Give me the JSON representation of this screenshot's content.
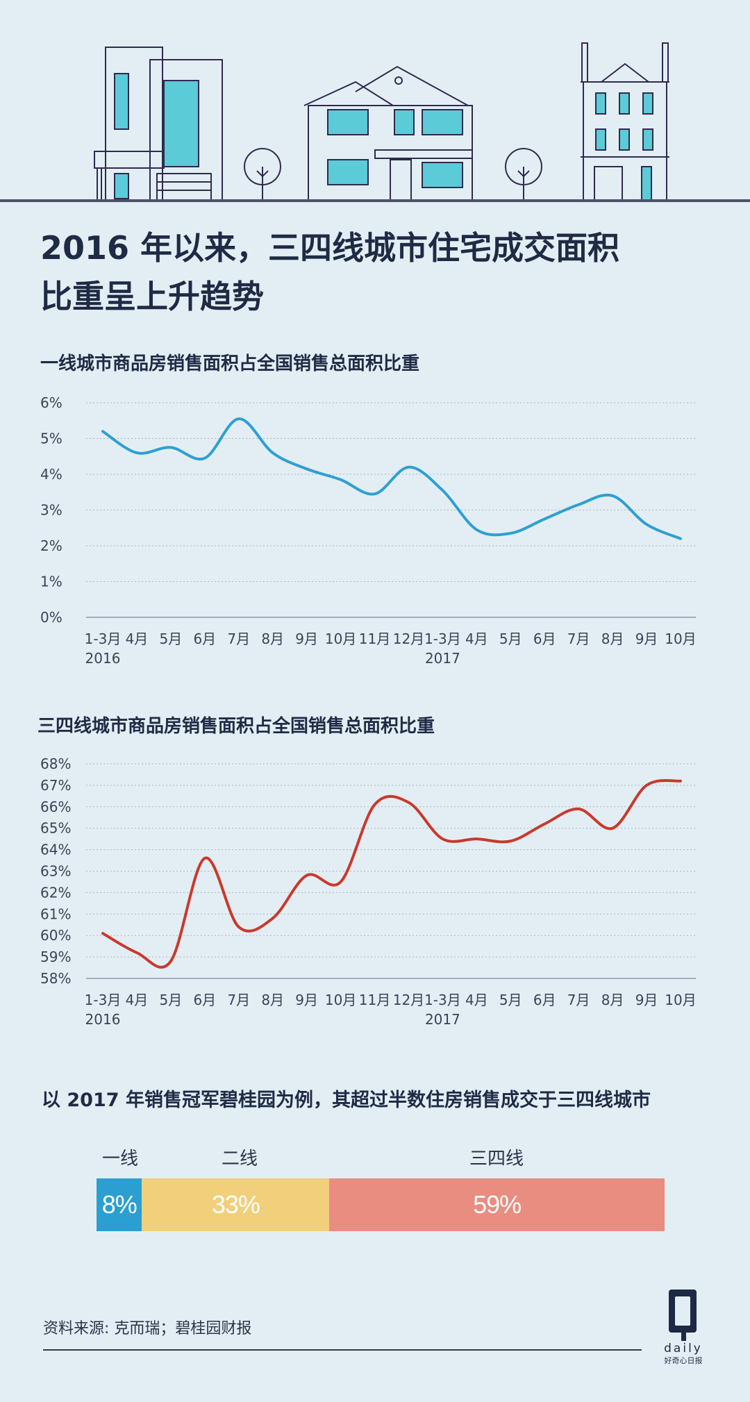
{
  "title_line1": "2016 年以来，三四线城市住宅成交面积",
  "title_line2": "比重呈上升趋势",
  "colors": {
    "background": "#e3eef4",
    "line1": "#2f9fd2",
    "line2": "#c9392c",
    "tier1": "#2b9fd1",
    "tier2": "#f2cf7b",
    "tier34": "#e88d80",
    "house_line": "#2f2a4e",
    "window": "#5ccbd8"
  },
  "chart_data": [
    {
      "type": "line",
      "title": "一线城市商品房销售面积占全国销售总面积比重",
      "x_labels": [
        "1-3月",
        "4月",
        "5月",
        "6月",
        "7月",
        "8月",
        "9月",
        "10月",
        "11月",
        "12月",
        "1-3月",
        "4月",
        "5月",
        "6月",
        "7月",
        "8月",
        "9月",
        "10月"
      ],
      "year_labels": [
        {
          "index": 0,
          "label": "2016"
        },
        {
          "index": 10,
          "label": "2017"
        }
      ],
      "y_ticks": [
        "0%",
        "1%",
        "2%",
        "3%",
        "4%",
        "5%",
        "6%"
      ],
      "ylim": [
        0,
        6
      ],
      "series": [
        {
          "values": [
            5.2,
            4.6,
            4.75,
            4.45,
            5.55,
            4.6,
            4.15,
            3.85,
            3.45,
            4.2,
            3.55,
            2.45,
            2.35,
            2.75,
            3.15,
            3.4,
            2.6,
            2.2
          ]
        }
      ]
    },
    {
      "type": "line",
      "title": "三四线城市商品房销售面积占全国销售总面积比重",
      "x_labels": [
        "1-3月",
        "4月",
        "5月",
        "6月",
        "7月",
        "8月",
        "9月",
        "10月",
        "11月",
        "12月",
        "1-3月",
        "4月",
        "5月",
        "6月",
        "7月",
        "8月",
        "9月",
        "10月"
      ],
      "year_labels": [
        {
          "index": 0,
          "label": "2016"
        },
        {
          "index": 10,
          "label": "2017"
        }
      ],
      "y_ticks": [
        "58%",
        "59%",
        "60%",
        "61%",
        "62%",
        "63%",
        "64%",
        "65%",
        "66%",
        "67%",
        "68%"
      ],
      "ylim": [
        58,
        68
      ],
      "series": [
        {
          "values": [
            60.1,
            59.2,
            58.8,
            63.6,
            60.4,
            60.8,
            62.8,
            62.5,
            66.1,
            66.2,
            64.5,
            64.5,
            64.4,
            65.2,
            65.9,
            65.0,
            67.0,
            67.2
          ]
        }
      ]
    },
    {
      "type": "bar",
      "title": "以 2017 年销售冠军碧桂园为例，其超过半数住房销售成交于三四线城市",
      "stacked": true,
      "categories": [
        "一线",
        "二线",
        "三四线"
      ],
      "values": [
        8,
        33,
        59
      ],
      "value_labels": [
        "8%",
        "33%",
        "59%"
      ]
    }
  ],
  "source": "资料来源: 克而瑞；碧桂园财报",
  "logo": {
    "letter": "Q",
    "word": "daily",
    "tagline": "好奇心日报"
  }
}
